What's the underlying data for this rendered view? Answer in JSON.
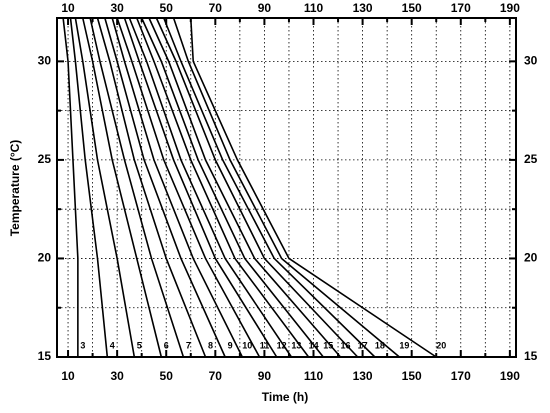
{
  "chart_data": {
    "type": "line",
    "xlabel": "Time (h)",
    "ylabel": "Temperature (°C)",
    "xlim": [
      5.5,
      192.5
    ],
    "ylim": [
      15,
      32.2
    ],
    "xticks": [
      10,
      30,
      50,
      70,
      90,
      110,
      130,
      150,
      170,
      190
    ],
    "xticks_minor": [
      20,
      40,
      60,
      80,
      100,
      120,
      140,
      160,
      180
    ],
    "yticks": [
      15,
      20,
      25,
      30
    ],
    "yticks_minor": [
      17.5,
      22.5,
      27.5
    ],
    "grid": true,
    "color": "#000000",
    "series": [
      {
        "name": "3",
        "x": [
          14,
          14,
          12,
          10,
          8
        ],
        "values": [
          15,
          20,
          25,
          30,
          32.2
        ]
      },
      {
        "name": "4",
        "x": [
          26,
          22,
          17,
          13,
          11
        ],
        "values": [
          15,
          20,
          25,
          30,
          32.2
        ]
      },
      {
        "name": "5",
        "x": [
          37,
          30,
          22,
          16,
          13
        ],
        "values": [
          15,
          20,
          25,
          30,
          32.2
        ]
      },
      {
        "name": "6",
        "x": [
          48,
          38,
          28,
          20,
          16
        ],
        "values": [
          15,
          20,
          25,
          30,
          32.2
        ]
      },
      {
        "name": "7",
        "x": [
          57,
          44,
          33,
          23,
          19
        ],
        "values": [
          15,
          20,
          25,
          30,
          32.2
        ]
      },
      {
        "name": "8",
        "x": [
          66,
          50,
          37,
          27,
          22
        ],
        "values": [
          15,
          20,
          25,
          30,
          32.2
        ]
      },
      {
        "name": "9",
        "x": [
          74,
          56,
          41,
          30,
          25
        ],
        "values": [
          15,
          20,
          25,
          30,
          32.2
        ]
      },
      {
        "name": "10",
        "x": [
          81,
          61,
          45,
          33,
          28
        ],
        "values": [
          15,
          20,
          25,
          30,
          32.2
        ]
      },
      {
        "name": "11",
        "x": [
          88,
          66,
          49,
          36,
          30
        ],
        "values": [
          15,
          20,
          25,
          30,
          32.2
        ]
      },
      {
        "name": "12",
        "x": [
          95,
          70,
          53,
          39,
          33
        ],
        "values": [
          15,
          20,
          25,
          30,
          32.2
        ]
      },
      {
        "name": "13",
        "x": [
          101,
          74,
          56,
          42,
          35
        ],
        "values": [
          15,
          20,
          25,
          30,
          32.2
        ]
      },
      {
        "name": "14",
        "x": [
          108,
          78,
          60,
          45,
          38
        ],
        "values": [
          15,
          20,
          25,
          30,
          32.2
        ]
      },
      {
        "name": "15",
        "x": [
          114,
          82,
          63,
          48,
          40
        ],
        "values": [
          15,
          20,
          25,
          30,
          32.2
        ]
      },
      {
        "name": "16",
        "x": [
          121,
          86,
          66,
          51,
          43
        ],
        "values": [
          15,
          20,
          25,
          30,
          32.2
        ]
      },
      {
        "name": "17",
        "x": [
          128,
          90,
          70,
          54,
          46
        ],
        "values": [
          15,
          20,
          25,
          30,
          32.2
        ]
      },
      {
        "name": "18",
        "x": [
          135,
          94,
          73,
          56,
          49
        ],
        "values": [
          15,
          20,
          25,
          30,
          32.2
        ]
      },
      {
        "name": "19",
        "x": [
          145,
          97,
          76,
          59,
          53
        ],
        "values": [
          15,
          20,
          25,
          30,
          32.2
        ]
      },
      {
        "name": "20",
        "x": [
          160,
          100,
          79,
          61,
          60
        ],
        "values": [
          15,
          20,
          25,
          30,
          32.2
        ]
      }
    ]
  }
}
